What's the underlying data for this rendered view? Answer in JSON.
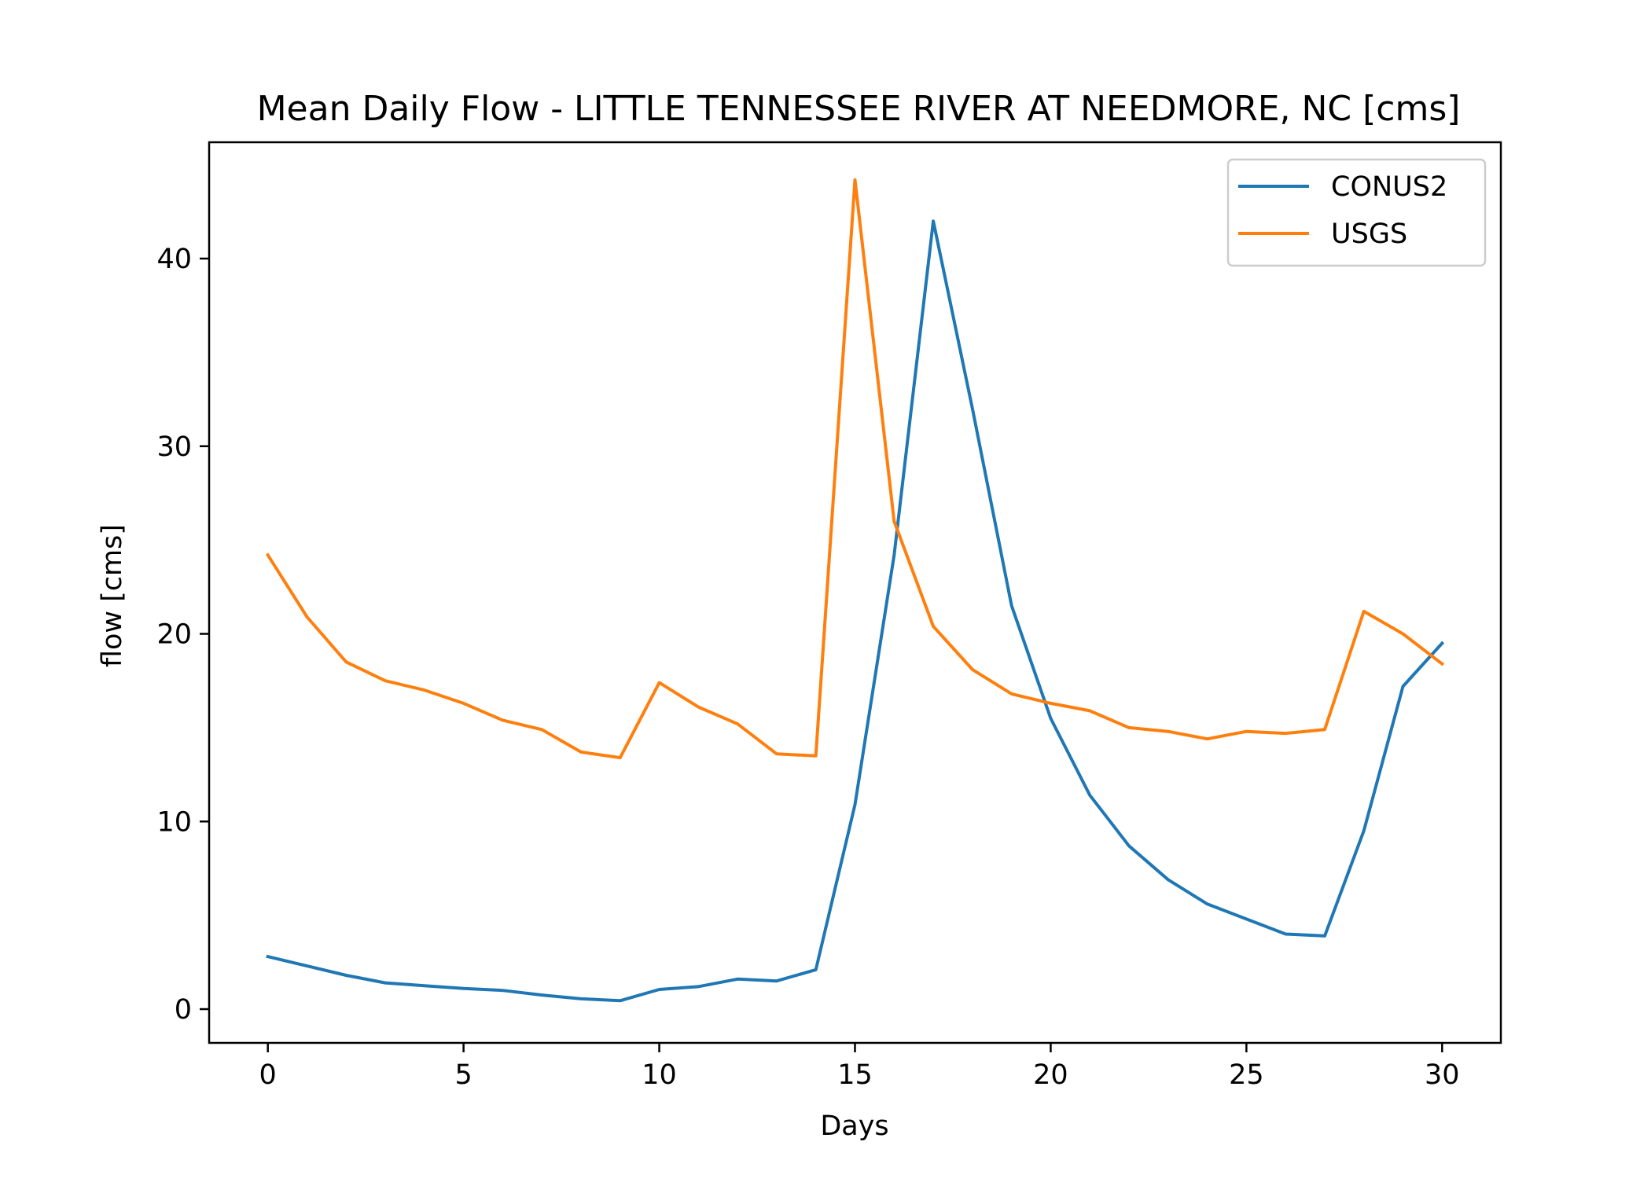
{
  "chart_data": {
    "type": "line",
    "title": "Mean Daily Flow - LITTLE TENNESSEE RIVER AT NEEDMORE, NC [cms]",
    "xlabel": "Days",
    "ylabel": "flow [cms]",
    "xlim": [
      -1.5,
      31.5
    ],
    "ylim": [
      -1.8,
      46.2
    ],
    "xticks": [
      0,
      5,
      10,
      15,
      20,
      25,
      30
    ],
    "yticks": [
      0,
      10,
      20,
      30,
      40
    ],
    "grid": false,
    "legend_position": "upper right",
    "x": [
      0,
      1,
      2,
      3,
      4,
      5,
      6,
      7,
      8,
      9,
      10,
      11,
      12,
      13,
      14,
      15,
      16,
      17,
      18,
      19,
      20,
      21,
      22,
      23,
      24,
      25,
      26,
      27,
      28,
      29,
      30
    ],
    "series": [
      {
        "name": "CONUS2",
        "color": "#1f77b4",
        "values": [
          2.8,
          2.3,
          1.8,
          1.4,
          1.25,
          1.1,
          1.0,
          0.75,
          0.55,
          0.45,
          1.05,
          1.2,
          1.6,
          1.5,
          2.1,
          10.9,
          24.2,
          42.0,
          32.0,
          21.5,
          15.5,
          11.4,
          8.7,
          6.9,
          5.6,
          4.8,
          4.0,
          3.9,
          9.5,
          17.2,
          19.5
        ]
      },
      {
        "name": "USGS",
        "color": "#ff7f0e",
        "values": [
          24.2,
          20.9,
          18.5,
          17.5,
          17.0,
          16.3,
          15.4,
          14.9,
          13.7,
          13.4,
          17.4,
          16.1,
          15.2,
          13.6,
          13.5,
          44.2,
          26.0,
          20.4,
          18.1,
          16.8,
          16.3,
          15.9,
          15.0,
          14.8,
          14.4,
          14.8,
          14.7,
          14.9,
          21.2,
          20.0,
          18.4
        ]
      }
    ]
  }
}
